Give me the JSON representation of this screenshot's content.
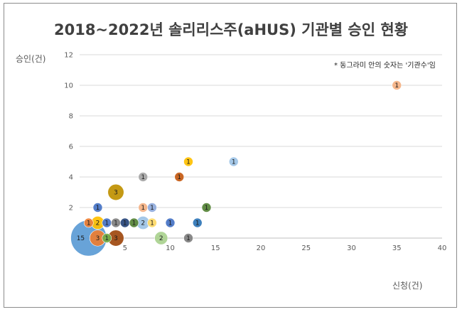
{
  "chart_data": {
    "type": "scatter",
    "title": "2018~2022년 솔리리스주(aHUS) 기관별 승인 현황",
    "xlabel": "신청(건)",
    "ylabel": "승인(건)",
    "annotation": "* 동그라미 안의 숫자는 '기관수'임",
    "xlim": [
      0,
      40
    ],
    "ylim": [
      0,
      12
    ],
    "xticks": [
      5,
      10,
      15,
      20,
      25,
      30,
      35,
      40
    ],
    "yticks": [
      2,
      4,
      6,
      8,
      10,
      12
    ],
    "grid": "horizontal",
    "points": [
      {
        "x": 1,
        "y": 0,
        "count": 15,
        "color": "#5b9bd5"
      },
      {
        "x": 2,
        "y": 0,
        "count": 3,
        "color": "#ed7d31"
      },
      {
        "x": 3,
        "y": 0,
        "count": 1,
        "color": "#70ad47"
      },
      {
        "x": 4,
        "y": 0,
        "count": 3,
        "color": "#9e480e"
      },
      {
        "x": 9,
        "y": 0,
        "count": 2,
        "color": "#a9d18e"
      },
      {
        "x": 12,
        "y": 0,
        "count": 1,
        "color": "#7f7f7f"
      },
      {
        "x": 1,
        "y": 1,
        "count": 1,
        "color": "#ed7d31"
      },
      {
        "x": 2,
        "y": 1,
        "count": 2,
        "color": "#ffc000"
      },
      {
        "x": 3,
        "y": 1,
        "count": 1,
        "color": "#4472c4"
      },
      {
        "x": 4,
        "y": 1,
        "count": 1,
        "color": "#7f7f7f"
      },
      {
        "x": 5,
        "y": 1,
        "count": 1,
        "color": "#264478"
      },
      {
        "x": 6,
        "y": 1,
        "count": 1,
        "color": "#548235"
      },
      {
        "x": 7,
        "y": 1,
        "count": 2,
        "color": "#9dc3e6"
      },
      {
        "x": 8,
        "y": 1,
        "count": 1,
        "color": "#ffd966"
      },
      {
        "x": 10,
        "y": 1,
        "count": 1,
        "color": "#4472c4"
      },
      {
        "x": 13,
        "y": 1,
        "count": 1,
        "color": "#2e75b6"
      },
      {
        "x": 2,
        "y": 2,
        "count": 1,
        "color": "#4472c4"
      },
      {
        "x": 7,
        "y": 2,
        "count": 1,
        "color": "#f4b183"
      },
      {
        "x": 8,
        "y": 2,
        "count": 1,
        "color": "#8faadc"
      },
      {
        "x": 14,
        "y": 2,
        "count": 1,
        "color": "#548235"
      },
      {
        "x": 4,
        "y": 3,
        "count": 3,
        "color": "#bf9000"
      },
      {
        "x": 7,
        "y": 4,
        "count": 1,
        "color": "#a5a5a5"
      },
      {
        "x": 11,
        "y": 4,
        "count": 1,
        "color": "#c55a11"
      },
      {
        "x": 12,
        "y": 5,
        "count": 1,
        "color": "#ffc000"
      },
      {
        "x": 17,
        "y": 5,
        "count": 1,
        "color": "#9dc3e6"
      },
      {
        "x": 35,
        "y": 10,
        "count": 1,
        "color": "#f4b183"
      }
    ]
  }
}
